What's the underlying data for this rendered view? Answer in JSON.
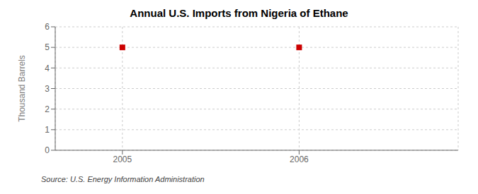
{
  "chart_data": {
    "type": "scatter",
    "title": "Annual U.S. Imports from Nigeria of Ethane",
    "y_label": "Thousand Barrels",
    "source": "Source: U.S. Energy Information Administration",
    "x": [
      2005,
      2006
    ],
    "values": [
      5,
      5
    ],
    "color": "#cc0000",
    "marker": "square",
    "xlim": [
      2004.62,
      2006.9
    ],
    "ylim": [
      0,
      6
    ],
    "xticks": [
      2005,
      2006
    ],
    "yticks": [
      0,
      1,
      2,
      3,
      4,
      5,
      6
    ],
    "grid": true
  }
}
